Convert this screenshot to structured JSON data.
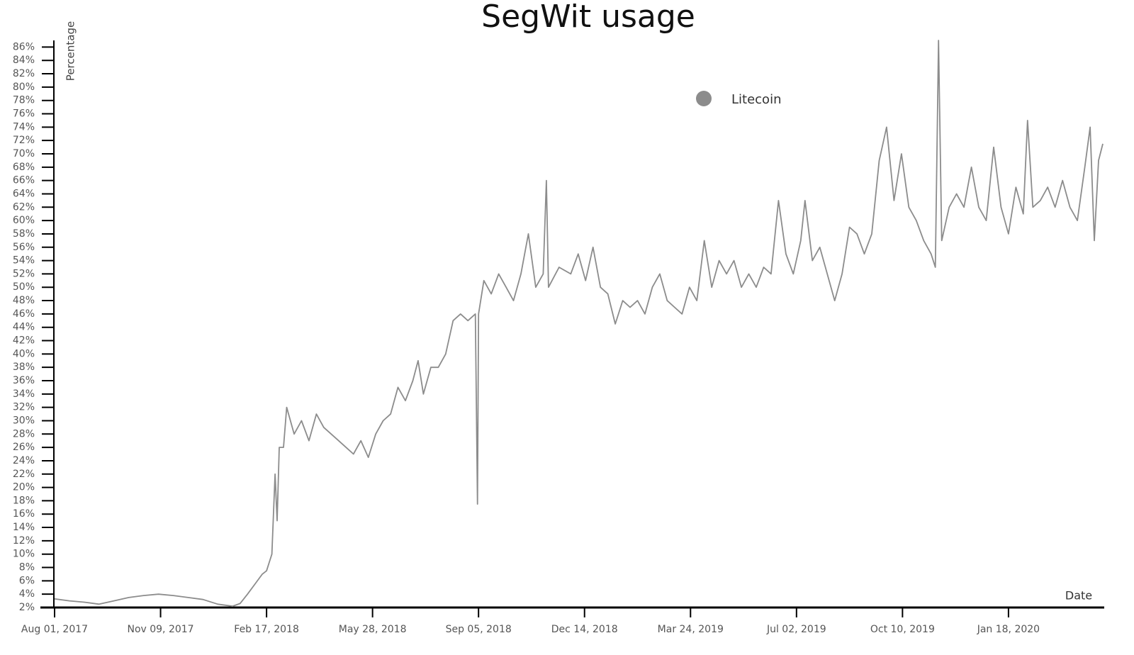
{
  "chart_data": {
    "type": "line",
    "title": "SegWit usage",
    "y_label": "Percentage",
    "x_label": "Date",
    "x": [
      "2017-08-01",
      "2017-08-15",
      "2017-08-29",
      "2017-09-12",
      "2017-09-26",
      "2017-10-10",
      "2017-10-24",
      "2017-11-07",
      "2017-11-21",
      "2017-12-05",
      "2017-12-19",
      "2018-01-02",
      "2018-01-16",
      "2018-01-23",
      "2018-01-30",
      "2018-02-06",
      "2018-02-13",
      "2018-02-17",
      "2018-02-22",
      "2018-02-25",
      "2018-02-27",
      "2018-03-01",
      "2018-03-05",
      "2018-03-08",
      "2018-03-15",
      "2018-03-22",
      "2018-03-29",
      "2018-04-05",
      "2018-04-12",
      "2018-04-19",
      "2018-04-26",
      "2018-05-03",
      "2018-05-10",
      "2018-05-17",
      "2018-05-24",
      "2018-05-31",
      "2018-06-07",
      "2018-06-14",
      "2018-06-21",
      "2018-06-28",
      "2018-07-05",
      "2018-07-10",
      "2018-07-15",
      "2018-07-22",
      "2018-07-29",
      "2018-08-05",
      "2018-08-12",
      "2018-08-19",
      "2018-08-26",
      "2018-09-02",
      "2018-09-04",
      "2018-09-05",
      "2018-09-10",
      "2018-09-17",
      "2018-09-24",
      "2018-10-01",
      "2018-10-08",
      "2018-10-15",
      "2018-10-22",
      "2018-10-29",
      "2018-11-05",
      "2018-11-08",
      "2018-11-10",
      "2018-11-20",
      "2018-12-01",
      "2018-12-08",
      "2018-12-15",
      "2018-12-22",
      "2018-12-29",
      "2019-01-05",
      "2019-01-12",
      "2019-01-19",
      "2019-01-26",
      "2019-02-02",
      "2019-02-09",
      "2019-02-16",
      "2019-02-23",
      "2019-03-02",
      "2019-03-09",
      "2019-03-16",
      "2019-03-23",
      "2019-03-30",
      "2019-04-06",
      "2019-04-13",
      "2019-04-20",
      "2019-04-27",
      "2019-05-04",
      "2019-05-11",
      "2019-05-18",
      "2019-05-25",
      "2019-06-01",
      "2019-06-08",
      "2019-06-15",
      "2019-06-22",
      "2019-06-29",
      "2019-07-06",
      "2019-07-10",
      "2019-07-17",
      "2019-07-24",
      "2019-07-31",
      "2019-08-07",
      "2019-08-14",
      "2019-08-21",
      "2019-08-28",
      "2019-09-04",
      "2019-09-11",
      "2019-09-18",
      "2019-09-25",
      "2019-10-02",
      "2019-10-09",
      "2019-10-16",
      "2019-10-23",
      "2019-10-30",
      "2019-11-06",
      "2019-11-10",
      "2019-11-13",
      "2019-11-16",
      "2019-11-23",
      "2019-11-30",
      "2019-12-07",
      "2019-12-14",
      "2019-12-21",
      "2019-12-28",
      "2020-01-04",
      "2020-01-11",
      "2020-01-18",
      "2020-01-25",
      "2020-02-01",
      "2020-02-05",
      "2020-02-10",
      "2020-02-17",
      "2020-02-24",
      "2020-03-02",
      "2020-03-09",
      "2020-03-16",
      "2020-03-23",
      "2020-03-30",
      "2020-04-04",
      "2020-04-08",
      "2020-04-12",
      "2020-04-16"
    ],
    "series": [
      {
        "name": "Litecoin",
        "color": "#8c8c8c",
        "values": [
          3.3,
          3.0,
          2.8,
          2.5,
          3.0,
          3.5,
          3.8,
          4.0,
          3.8,
          3.5,
          3.2,
          2.5,
          2.2,
          2.6,
          4,
          5.5,
          7,
          7.5,
          10,
          22,
          15,
          26,
          26,
          32,
          28,
          30,
          27,
          31,
          29,
          28,
          27,
          26,
          25,
          27,
          24.5,
          28,
          30,
          31,
          35,
          33,
          36,
          39,
          34,
          38,
          38,
          40,
          45,
          46,
          45,
          46,
          17.5,
          46,
          51,
          49,
          52,
          50,
          48,
          52,
          58,
          50,
          52,
          66,
          50,
          53,
          52,
          55,
          51,
          56,
          50,
          49,
          44.5,
          48,
          47,
          48,
          46,
          50,
          52,
          48,
          47,
          46,
          50,
          48,
          57,
          50,
          54,
          52,
          54,
          50,
          52,
          50,
          53,
          52,
          63,
          55,
          52,
          57,
          63,
          54,
          56,
          52,
          48,
          52,
          59,
          58,
          55,
          58,
          69,
          74,
          63,
          70,
          62,
          60,
          57,
          55,
          53,
          87,
          57,
          62,
          64,
          62,
          68,
          62,
          60,
          71,
          62,
          58,
          65,
          61,
          75,
          62,
          63,
          65,
          62,
          66,
          62,
          60,
          68,
          74,
          57,
          69,
          71.5
        ]
      }
    ],
    "xlim": [
      "2017-08-01",
      "2020-04-16"
    ],
    "xticks": [
      {
        "value": "2017-08-01",
        "label": "Aug 01, 2017"
      },
      {
        "value": "2017-11-09",
        "label": "Nov 09, 2017"
      },
      {
        "value": "2018-02-17",
        "label": "Feb 17, 2018"
      },
      {
        "value": "2018-05-28",
        "label": "May 28, 2018"
      },
      {
        "value": "2018-09-05",
        "label": "Sep 05, 2018"
      },
      {
        "value": "2018-12-14",
        "label": "Dec 14, 2018"
      },
      {
        "value": "2019-03-24",
        "label": "Mar 24, 2019"
      },
      {
        "value": "2019-07-02",
        "label": "Jul 02, 2019"
      },
      {
        "value": "2019-10-10",
        "label": "Oct 10, 2019"
      },
      {
        "value": "2020-01-18",
        "label": "Jan 18, 2020"
      }
    ],
    "ylim": [
      2,
      87
    ],
    "yticks": [
      {
        "value": 2,
        "label": "2%"
      },
      {
        "value": 4,
        "label": "4%"
      },
      {
        "value": 6,
        "label": "6%"
      },
      {
        "value": 8,
        "label": "8%"
      },
      {
        "value": 10,
        "label": "10%"
      },
      {
        "value": 12,
        "label": "12%"
      },
      {
        "value": 14,
        "label": "14%"
      },
      {
        "value": 16,
        "label": "16%"
      },
      {
        "value": 18,
        "label": "18%"
      },
      {
        "value": 20,
        "label": "20%"
      },
      {
        "value": 22,
        "label": "22%"
      },
      {
        "value": 24,
        "label": "24%"
      },
      {
        "value": 26,
        "label": "26%"
      },
      {
        "value": 28,
        "label": "28%"
      },
      {
        "value": 30,
        "label": "30%"
      },
      {
        "value": 32,
        "label": "32%"
      },
      {
        "value": 34,
        "label": "34%"
      },
      {
        "value": 36,
        "label": "36%"
      },
      {
        "value": 38,
        "label": "38%"
      },
      {
        "value": 40,
        "label": "40%"
      },
      {
        "value": 42,
        "label": "42%"
      },
      {
        "value": 44,
        "label": "44%"
      },
      {
        "value": 46,
        "label": "46%"
      },
      {
        "value": 48,
        "label": "48%"
      },
      {
        "value": 50,
        "label": "50%"
      },
      {
        "value": 52,
        "label": "52%"
      },
      {
        "value": 54,
        "label": "54%"
      },
      {
        "value": 56,
        "label": "56%"
      },
      {
        "value": 58,
        "label": "58%"
      },
      {
        "value": 60,
        "label": "60%"
      },
      {
        "value": 62,
        "label": "62%"
      },
      {
        "value": 64,
        "label": "64%"
      },
      {
        "value": 66,
        "label": "66%"
      },
      {
        "value": 68,
        "label": "68%"
      },
      {
        "value": 70,
        "label": "70%"
      },
      {
        "value": 72,
        "label": "72%"
      },
      {
        "value": 74,
        "label": "74%"
      },
      {
        "value": 76,
        "label": "76%"
      },
      {
        "value": 78,
        "label": "78%"
      },
      {
        "value": 80,
        "label": "80%"
      },
      {
        "value": 82,
        "label": "82%"
      },
      {
        "value": 84,
        "label": "84%"
      },
      {
        "value": 86,
        "label": "86%"
      }
    ],
    "grid": false
  }
}
